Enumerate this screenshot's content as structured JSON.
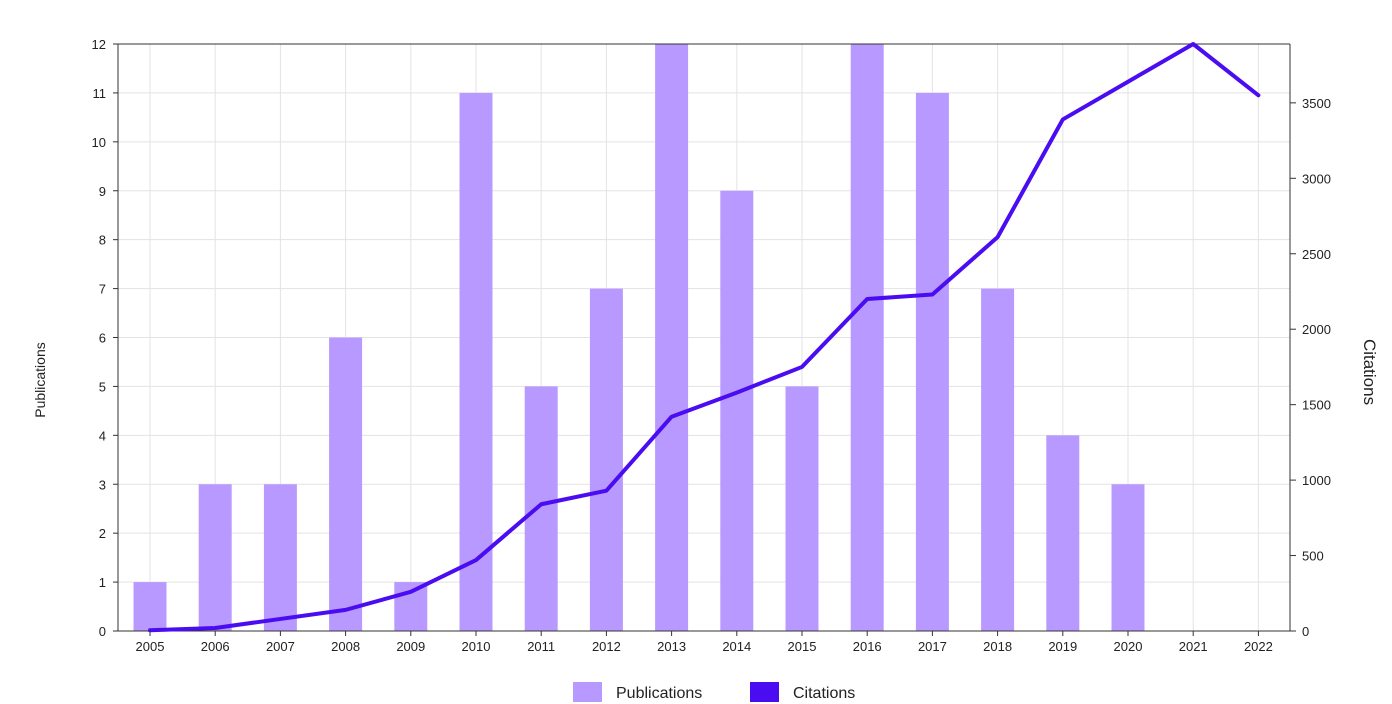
{
  "chart_data": {
    "type": "bar+line",
    "categories": [
      "2005",
      "2006",
      "2007",
      "2008",
      "2009",
      "2010",
      "2011",
      "2012",
      "2013",
      "2014",
      "2015",
      "2016",
      "2017",
      "2018",
      "2019",
      "2020",
      "2021",
      "2022"
    ],
    "series": [
      {
        "name": "Publications",
        "type": "bar",
        "axis": "left",
        "color": "#b899ff",
        "values": [
          1,
          3,
          3,
          6,
          1,
          11,
          5,
          7,
          12,
          9,
          5,
          12,
          11,
          7,
          4,
          3,
          0,
          0
        ]
      },
      {
        "name": "Citations",
        "type": "line",
        "axis": "right",
        "color": "#4a0cf0",
        "values": [
          5,
          20,
          80,
          140,
          260,
          470,
          840,
          930,
          1420,
          1580,
          1750,
          2200,
          2230,
          2610,
          3390,
          3640,
          3890,
          3550
        ]
      }
    ],
    "y_left": {
      "label": "Publications",
      "range": [
        0,
        12
      ],
      "ticks": [
        0,
        1,
        2,
        3,
        4,
        5,
        6,
        7,
        8,
        9,
        10,
        11,
        12
      ]
    },
    "y_right": {
      "label": "Citations",
      "range": [
        0,
        3890
      ],
      "ticks": [
        0,
        500,
        1000,
        1500,
        2000,
        2500,
        3000,
        3500
      ]
    },
    "grid": true,
    "legend": {
      "position": "bottom-center",
      "items": [
        "Publications",
        "Citations"
      ]
    }
  }
}
